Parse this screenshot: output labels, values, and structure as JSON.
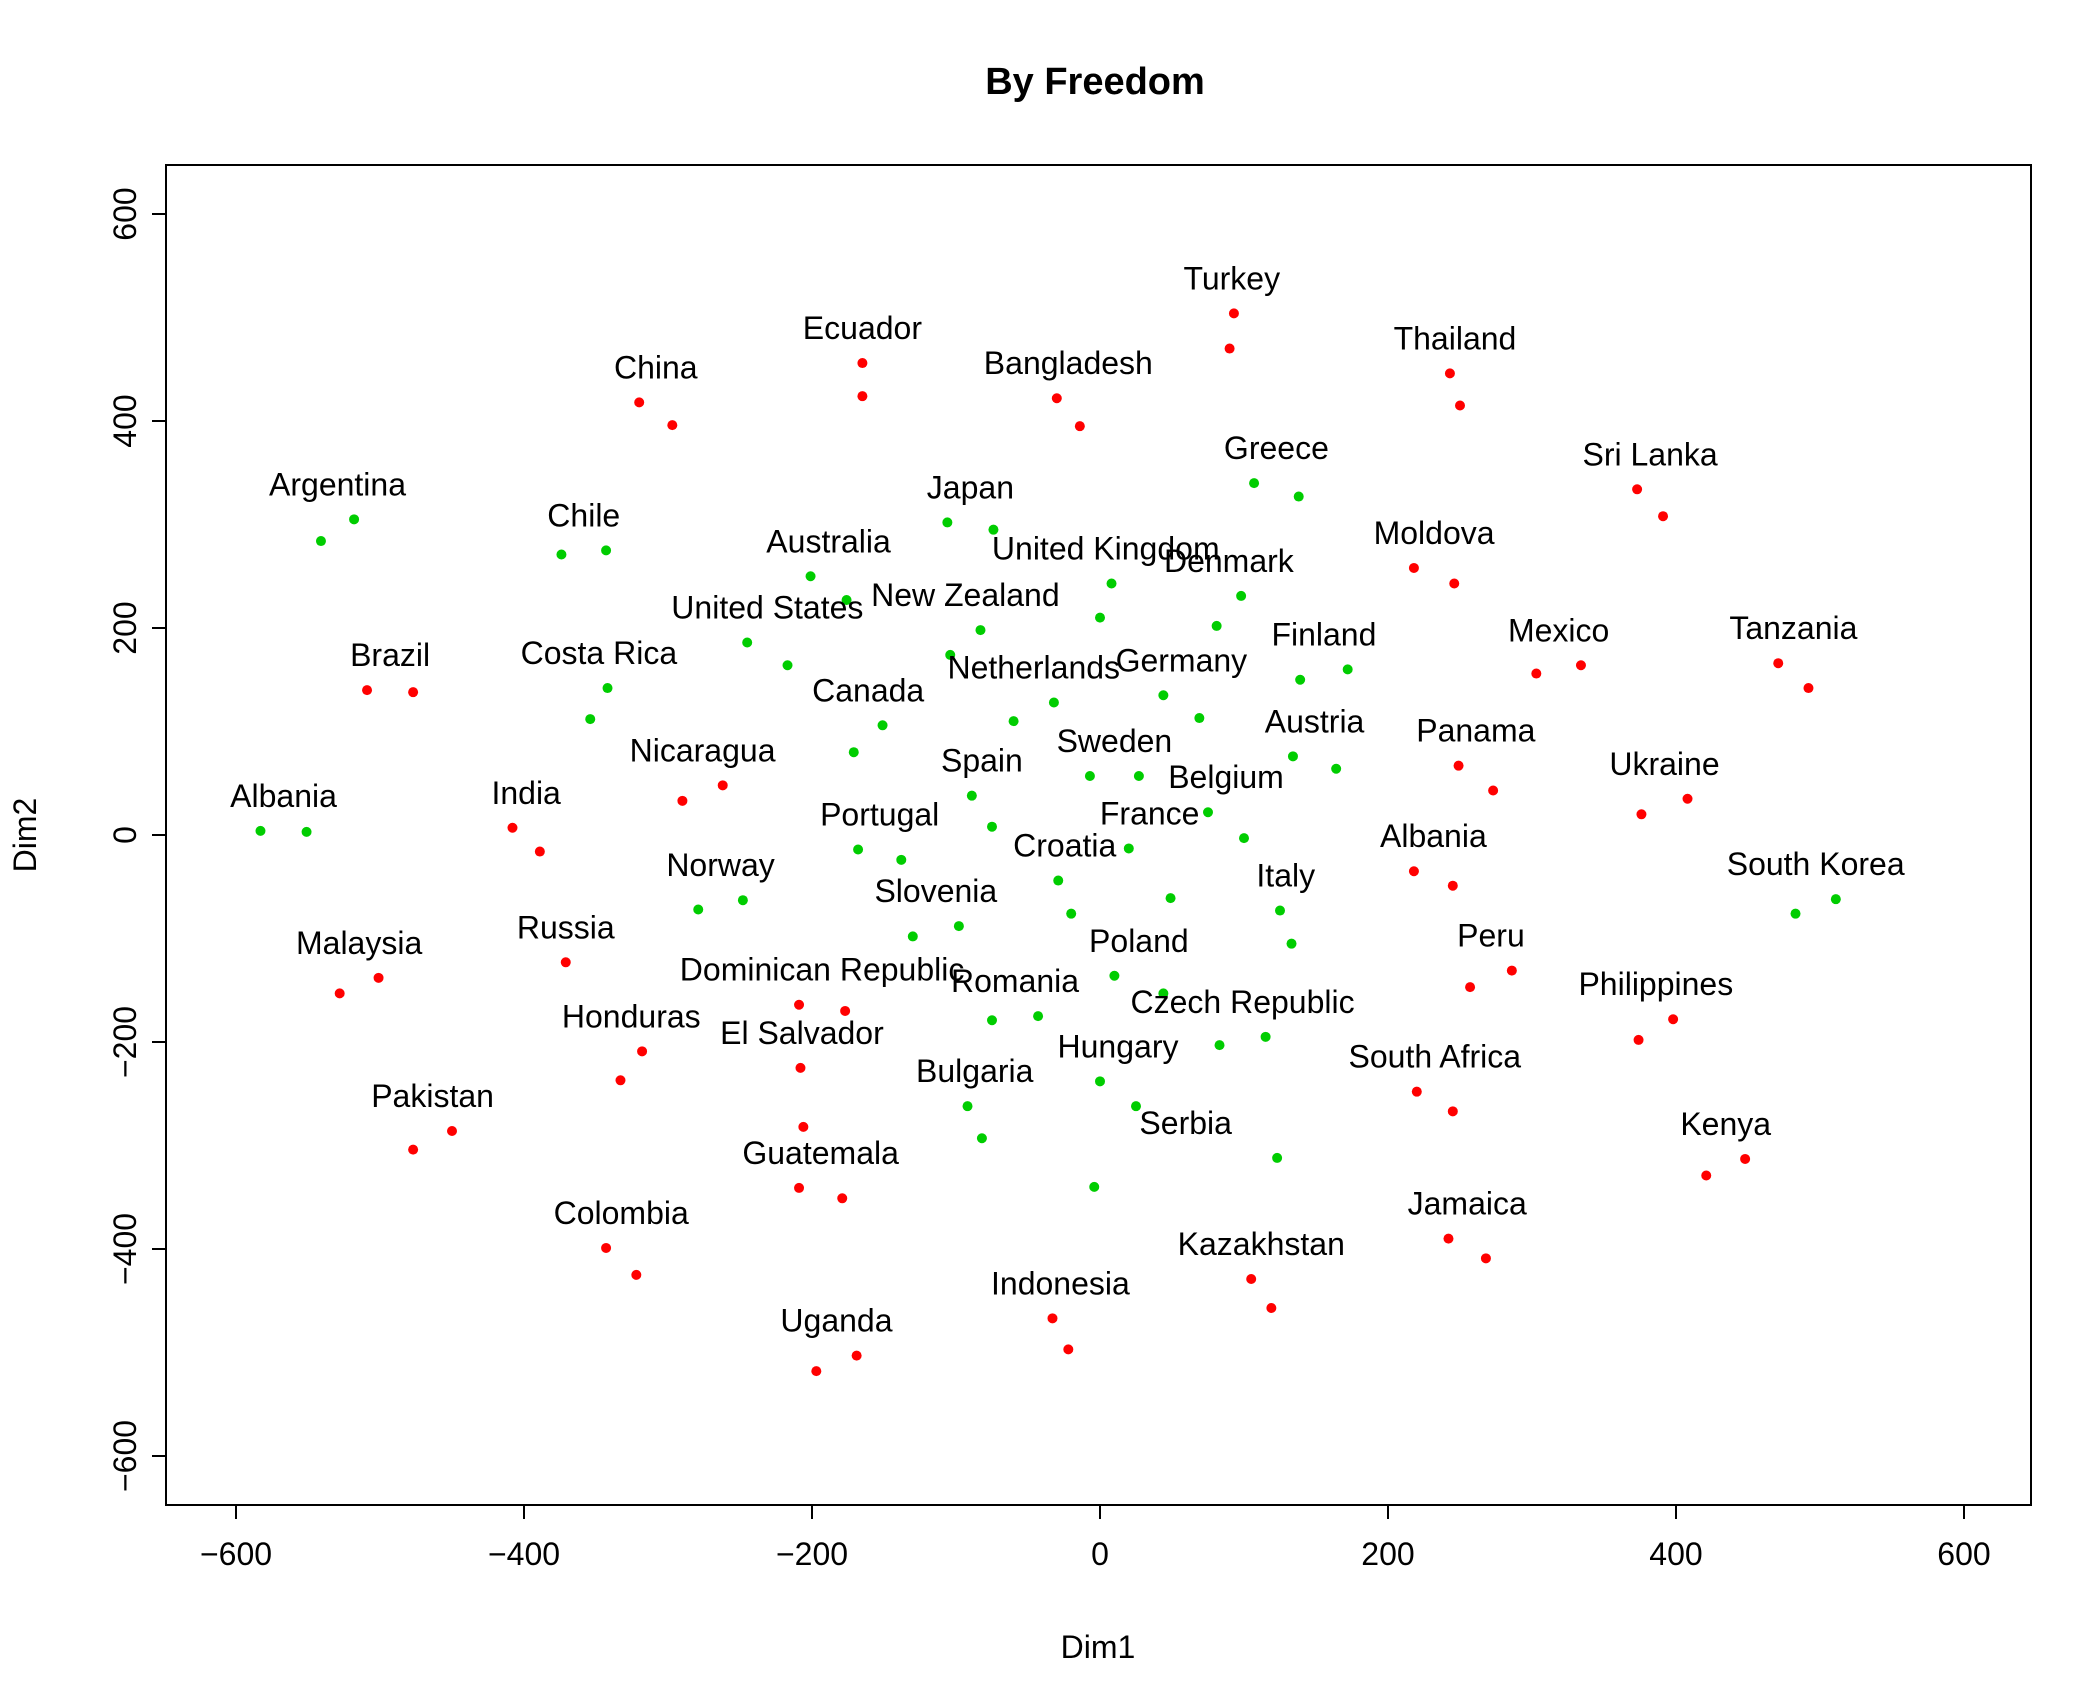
{
  "chart_data": {
    "type": "scatter",
    "title": "By Freedom",
    "xlabel": "Dim1",
    "ylabel": "Dim2",
    "xlim": [
      -650,
      650
    ],
    "ylim": [
      -650,
      650
    ],
    "xticks": [
      -600,
      -400,
      -200,
      0,
      200,
      400,
      600
    ],
    "yticks": [
      -600,
      -400,
      -200,
      0,
      200,
      400,
      600
    ],
    "tick_labels": {
      "x": [
        "−600",
        "−400",
        "−200",
        "0",
        "200",
        "400",
        "600"
      ],
      "y": [
        "−600",
        "−400",
        "−200",
        "0",
        "200",
        "400",
        "600"
      ]
    },
    "colors": {
      "red": "#ff0000",
      "green": "#00cd00"
    },
    "points": [
      {
        "name": "Albania",
        "color": "green",
        "pts": [
          [
            -583,
            4
          ],
          [
            -551,
            3
          ]
        ]
      },
      {
        "name": "Argentina",
        "color": "green",
        "pts": [
          [
            -541,
            284
          ],
          [
            -518,
            305
          ]
        ]
      },
      {
        "name": "Chile",
        "color": "green",
        "pts": [
          [
            -374,
            271
          ],
          [
            -343,
            275
          ]
        ]
      },
      {
        "name": "Costa Rica",
        "color": "green",
        "pts": [
          [
            -354,
            112
          ],
          [
            -342,
            142
          ]
        ]
      },
      {
        "name": "Australia",
        "color": "green",
        "pts": [
          [
            -201,
            250
          ],
          [
            -176,
            227
          ]
        ]
      },
      {
        "name": "United States",
        "color": "green",
        "pts": [
          [
            -245,
            186
          ],
          [
            -217,
            164
          ]
        ]
      },
      {
        "name": "Japan",
        "color": "green",
        "pts": [
          [
            -106,
            302
          ],
          [
            -74,
            295
          ]
        ]
      },
      {
        "name": "New Zealand",
        "color": "green",
        "pts": [
          [
            -104,
            174
          ],
          [
            -83,
            198
          ]
        ]
      },
      {
        "name": "United Kingdom",
        "color": "green",
        "pts": [
          [
            0,
            210
          ],
          [
            8,
            243
          ]
        ]
      },
      {
        "name": "Denmark",
        "color": "green",
        "pts": [
          [
            81,
            202
          ],
          [
            98,
            231
          ]
        ]
      },
      {
        "name": "Greece",
        "color": "green",
        "pts": [
          [
            107,
            340
          ],
          [
            138,
            327
          ]
        ]
      },
      {
        "name": "Netherlands",
        "color": "green",
        "pts": [
          [
            -60,
            110
          ],
          [
            -32,
            128
          ]
        ]
      },
      {
        "name": "Germany",
        "color": "green",
        "pts": [
          [
            44,
            135
          ],
          [
            69,
            113
          ]
        ]
      },
      {
        "name": "Finland",
        "color": "green",
        "pts": [
          [
            139,
            150
          ],
          [
            172,
            160
          ]
        ]
      },
      {
        "name": "Canada",
        "color": "green",
        "pts": [
          [
            -171,
            80
          ],
          [
            -151,
            106
          ]
        ]
      },
      {
        "name": "Sweden",
        "color": "green",
        "pts": [
          [
            -7,
            57
          ],
          [
            27,
            57
          ]
        ]
      },
      {
        "name": "Austria",
        "color": "green",
        "pts": [
          [
            134,
            76
          ],
          [
            164,
            64
          ]
        ]
      },
      {
        "name": "Belgium",
        "color": "green",
        "pts": [
          [
            75,
            22
          ],
          [
            100,
            -3
          ]
        ]
      },
      {
        "name": "Spain",
        "color": "green",
        "pts": [
          [
            -89,
            38
          ],
          [
            -75,
            8
          ]
        ]
      },
      {
        "name": "Portugal",
        "color": "green",
        "pts": [
          [
            -168,
            -14
          ],
          [
            -138,
            -24
          ]
        ]
      },
      {
        "name": "Croatia",
        "color": "green",
        "pts": [
          [
            -29,
            -44
          ],
          [
            -20,
            -76
          ]
        ]
      },
      {
        "name": "France",
        "color": "green",
        "pts": [
          [
            20,
            -13
          ],
          [
            49,
            -61
          ]
        ]
      },
      {
        "name": "Norway",
        "color": "green",
        "pts": [
          [
            -279,
            -72
          ],
          [
            -248,
            -63
          ]
        ]
      },
      {
        "name": "Slovenia",
        "color": "green",
        "pts": [
          [
            -130,
            -98
          ],
          [
            -98,
            -88
          ]
        ]
      },
      {
        "name": "Italy",
        "color": "green",
        "pts": [
          [
            125,
            -73
          ],
          [
            133,
            -105
          ]
        ]
      },
      {
        "name": "Poland",
        "color": "green",
        "pts": [
          [
            10,
            -136
          ],
          [
            44,
            -153
          ]
        ]
      },
      {
        "name": "Romania",
        "color": "green",
        "pts": [
          [
            -75,
            -179
          ],
          [
            -43,
            -175
          ]
        ]
      },
      {
        "name": "Czech Republic",
        "color": "green",
        "pts": [
          [
            83,
            -203
          ],
          [
            115,
            -195
          ]
        ]
      },
      {
        "name": "Hungary",
        "color": "green",
        "pts": [
          [
            0,
            -238
          ],
          [
            25,
            -262
          ]
        ]
      },
      {
        "name": "Bulgaria",
        "color": "green",
        "pts": [
          [
            -92,
            -262
          ],
          [
            -82,
            -293
          ]
        ]
      },
      {
        "name": "Serbia",
        "color": "green",
        "pts": [
          [
            -4,
            -340
          ],
          [
            123,
            -312
          ]
        ]
      },
      {
        "name": "South Korea",
        "color": "green",
        "pts": [
          [
            483,
            -76
          ],
          [
            511,
            -62
          ]
        ]
      },
      {
        "name": "China",
        "color": "red",
        "pts": [
          [
            -320,
            418
          ],
          [
            -297,
            396
          ]
        ]
      },
      {
        "name": "Ecuador",
        "color": "red",
        "pts": [
          [
            -165,
            456
          ],
          [
            -165,
            424
          ]
        ]
      },
      {
        "name": "Bangladesh",
        "color": "red",
        "pts": [
          [
            -30,
            422
          ],
          [
            -14,
            395
          ]
        ]
      },
      {
        "name": "Turkey",
        "color": "red",
        "pts": [
          [
            90,
            470
          ],
          [
            93,
            504
          ]
        ]
      },
      {
        "name": "Thailand",
        "color": "red",
        "pts": [
          [
            243,
            446
          ],
          [
            250,
            415
          ]
        ]
      },
      {
        "name": "Sri Lanka",
        "color": "red",
        "pts": [
          [
            373,
            334
          ],
          [
            391,
            308
          ]
        ]
      },
      {
        "name": "Moldova",
        "color": "red",
        "pts": [
          [
            218,
            258
          ],
          [
            246,
            243
          ]
        ]
      },
      {
        "name": "Mexico",
        "color": "red",
        "pts": [
          [
            303,
            156
          ],
          [
            334,
            164
          ]
        ]
      },
      {
        "name": "Tanzania",
        "color": "red",
        "pts": [
          [
            471,
            166
          ],
          [
            492,
            142
          ]
        ]
      },
      {
        "name": "Brazil",
        "color": "red",
        "pts": [
          [
            -509,
            140
          ],
          [
            -477,
            138
          ]
        ]
      },
      {
        "name": "Nicaragua",
        "color": "red",
        "pts": [
          [
            -290,
            33
          ],
          [
            -262,
            48
          ]
        ]
      },
      {
        "name": "India",
        "color": "red",
        "pts": [
          [
            -408,
            7
          ],
          [
            -389,
            -16
          ]
        ]
      },
      {
        "name": "Panama",
        "color": "red",
        "pts": [
          [
            249,
            67
          ],
          [
            273,
            43
          ]
        ]
      },
      {
        "name": "Ukraine",
        "color": "red",
        "pts": [
          [
            376,
            20
          ],
          [
            408,
            35
          ]
        ]
      },
      {
        "name": "Albania",
        "color": "red",
        "pts": [
          [
            218,
            -35
          ],
          [
            245,
            -49
          ]
        ]
      },
      {
        "name": "Malaysia",
        "color": "red",
        "pts": [
          [
            -528,
            -153
          ],
          [
            -501,
            -138
          ]
        ]
      },
      {
        "name": "Russia",
        "color": "red",
        "pts": [
          [
            -371,
            -123
          ]
        ]
      },
      {
        "name": "Dominican Republic",
        "color": "red",
        "pts": [
          [
            -209,
            -164
          ],
          [
            -177,
            -170
          ]
        ]
      },
      {
        "name": "Peru",
        "color": "red",
        "pts": [
          [
            257,
            -147
          ],
          [
            286,
            -131
          ]
        ]
      },
      {
        "name": "Philippines",
        "color": "red",
        "pts": [
          [
            374,
            -198
          ],
          [
            398,
            -178
          ]
        ]
      },
      {
        "name": "Honduras",
        "color": "red",
        "pts": [
          [
            -333,
            -237
          ],
          [
            -318,
            -209
          ]
        ]
      },
      {
        "name": "El Salvador",
        "color": "red",
        "pts": [
          [
            -208,
            -225
          ],
          [
            -206,
            -282
          ]
        ]
      },
      {
        "name": "Pakistan",
        "color": "red",
        "pts": [
          [
            -477,
            -304
          ],
          [
            -450,
            -286
          ]
        ]
      },
      {
        "name": "South Africa",
        "color": "red",
        "pts": [
          [
            220,
            -248
          ],
          [
            245,
            -267
          ]
        ]
      },
      {
        "name": "Kenya",
        "color": "red",
        "pts": [
          [
            421,
            -329
          ],
          [
            448,
            -313
          ]
        ]
      },
      {
        "name": "Guatemala",
        "color": "red",
        "pts": [
          [
            -209,
            -341
          ],
          [
            -179,
            -351
          ]
        ]
      },
      {
        "name": "Jamaica",
        "color": "red",
        "pts": [
          [
            242,
            -390
          ],
          [
            268,
            -409
          ]
        ]
      },
      {
        "name": "Colombia",
        "color": "red",
        "pts": [
          [
            -343,
            -399
          ],
          [
            -322,
            -425
          ]
        ]
      },
      {
        "name": "Kazakhstan",
        "color": "red",
        "pts": [
          [
            105,
            -429
          ],
          [
            119,
            -457
          ]
        ]
      },
      {
        "name": "Indonesia",
        "color": "red",
        "pts": [
          [
            -33,
            -467
          ],
          [
            -22,
            -497
          ]
        ]
      },
      {
        "name": "Uganda",
        "color": "red",
        "pts": [
          [
            -197,
            -518
          ],
          [
            -169,
            -503
          ]
        ]
      }
    ]
  }
}
